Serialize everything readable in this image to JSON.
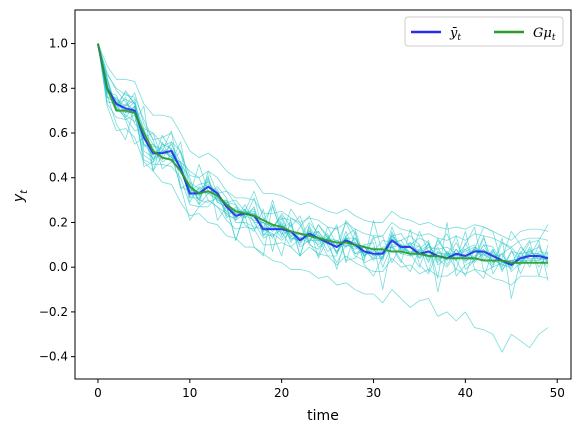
{
  "chart_data": {
    "type": "line",
    "xlabel": "time",
    "ylabel": "y",
    "ylabel_subscript": "t",
    "xlim": [
      -2.5,
      51.5
    ],
    "ylim": [
      -0.5,
      1.15
    ],
    "xticks": [
      0,
      10,
      20,
      30,
      40,
      50
    ],
    "yticks": [
      -0.4,
      -0.2,
      0.0,
      0.2,
      0.4,
      0.6,
      0.8,
      1.0
    ],
    "ytick_labels": [
      "−0.4",
      "−0.2",
      "0.0",
      "0.2",
      "0.4",
      "0.6",
      "0.8",
      "1.0"
    ],
    "grid": false,
    "legend_position": "top-right",
    "colors": {
      "mean": "#2a2aee",
      "model": "#2a9a2a",
      "paths": "#22c4c4"
    },
    "series": [
      {
        "name": "ȳ",
        "name_subscript": "t",
        "color": "#2a2aee",
        "values": [
          1.0,
          0.8,
          0.73,
          0.71,
          0.7,
          0.58,
          0.51,
          0.51,
          0.52,
          0.44,
          0.33,
          0.33,
          0.36,
          0.33,
          0.27,
          0.23,
          0.24,
          0.23,
          0.17,
          0.17,
          0.17,
          0.16,
          0.12,
          0.15,
          0.13,
          0.11,
          0.09,
          0.12,
          0.1,
          0.07,
          0.06,
          0.06,
          0.12,
          0.09,
          0.09,
          0.06,
          0.07,
          0.05,
          0.04,
          0.06,
          0.05,
          0.07,
          0.07,
          0.05,
          0.03,
          0.01,
          0.04,
          0.05,
          0.05,
          0.04
        ]
      },
      {
        "name": "Gμ",
        "name_subscript": "t",
        "color": "#2a9a2a",
        "values": [
          1.0,
          0.8,
          0.7,
          0.7,
          0.69,
          0.6,
          0.52,
          0.49,
          0.48,
          0.43,
          0.36,
          0.33,
          0.34,
          0.32,
          0.28,
          0.25,
          0.24,
          0.23,
          0.21,
          0.19,
          0.18,
          0.16,
          0.15,
          0.14,
          0.13,
          0.12,
          0.11,
          0.11,
          0.1,
          0.09,
          0.08,
          0.08,
          0.07,
          0.07,
          0.06,
          0.06,
          0.05,
          0.05,
          0.04,
          0.04,
          0.04,
          0.04,
          0.03,
          0.03,
          0.03,
          0.02,
          0.02,
          0.02,
          0.02,
          0.02
        ]
      }
    ],
    "sample_paths": {
      "count": 20,
      "color": "#22c4c4",
      "paths": [
        [
          1.0,
          0.79,
          0.73,
          0.66,
          0.55,
          0.58,
          0.6,
          0.48,
          0.56,
          0.52,
          0.31,
          0.31,
          0.41,
          0.21,
          0.27,
          0.12,
          0.24,
          0.24,
          0.21,
          0.27,
          0.16,
          0.09,
          0.13,
          0.11,
          0.19,
          0.14,
          0.06,
          0.13,
          0.13,
          0.07,
          0.07,
          0.12,
          0.11,
          0.12,
          0.14,
          0.1,
          -0.02,
          0.13,
          0.06,
          0.03,
          -0.04,
          0.08,
          0.18,
          0.16,
          0.01,
          0.03,
          0.01,
          0.07,
          0.09,
          0.02
        ],
        [
          1.0,
          0.84,
          0.71,
          0.79,
          0.73,
          0.45,
          0.47,
          0.52,
          0.5,
          0.36,
          0.21,
          0.27,
          0.27,
          0.32,
          0.28,
          0.12,
          0.25,
          0.22,
          0.2,
          0.18,
          0.22,
          0.21,
          0.05,
          0.18,
          0.12,
          0.12,
          0.19,
          0.02,
          0.16,
          0.01,
          -0.04,
          0.05,
          0.09,
          0.02,
          0.17,
          0.01,
          -0.03,
          0.07,
          0.05,
          0.14,
          -0.01,
          0.03,
          0.06,
          0.01,
          0.13,
          -0.14,
          0.03,
          0.05,
          0.12,
          -0.06
        ],
        [
          1.0,
          0.77,
          0.64,
          0.57,
          0.72,
          0.52,
          0.49,
          0.51,
          0.51,
          0.44,
          0.32,
          0.46,
          0.34,
          0.3,
          0.29,
          0.3,
          0.25,
          0.34,
          0.22,
          0.17,
          0.24,
          0.18,
          0.23,
          0.11,
          0.19,
          0.13,
          -0.01,
          0.14,
          0.17,
          0.04,
          0.13,
          0.14,
          0.02,
          0.1,
          0.06,
          0.0,
          0.11,
          -0.05,
          0.2,
          -0.04,
          0.01,
          0.03,
          0.13,
          0.02,
          0.06,
          0.09,
          0.04,
          0.11,
          0.12,
          0.19
        ],
        [
          1.0,
          0.76,
          0.73,
          0.78,
          0.73,
          0.62,
          0.6,
          0.55,
          0.53,
          0.46,
          0.4,
          0.28,
          0.43,
          0.33,
          0.34,
          0.28,
          0.23,
          0.09,
          0.05,
          0.28,
          0.14,
          0.26,
          0.2,
          0.11,
          0.05,
          0.18,
          0.1,
          0.2,
          0.11,
          0.05,
          0.14,
          0.0,
          0.1,
          0.1,
          0.05,
          0.16,
          0.07,
          0.1,
          0.15,
          0.05,
          0.1,
          0.18,
          -0.02,
          0.0,
          0.11,
          0.08,
          -0.03,
          0.06,
          0.06,
          0.03
        ],
        [
          1.0,
          0.82,
          0.71,
          0.68,
          0.65,
          0.72,
          0.43,
          0.5,
          0.55,
          0.47,
          0.43,
          0.4,
          0.3,
          0.27,
          0.24,
          0.21,
          0.28,
          0.2,
          0.13,
          0.15,
          0.05,
          0.22,
          0.19,
          0.1,
          0.08,
          0.13,
          0.09,
          0.13,
          0.05,
          0.03,
          0.21,
          0.06,
          0.1,
          0.03,
          -0.02,
          0.08,
          0.12,
          -0.11,
          0.07,
          0.03,
          0.16,
          -0.01,
          -0.05,
          0.08,
          -0.02,
          0.07,
          0.06,
          0.12,
          -0.04,
          0.1
        ],
        [
          1.0,
          0.87,
          0.79,
          0.74,
          0.69,
          0.5,
          0.47,
          0.59,
          0.52,
          0.35,
          0.38,
          0.35,
          0.33,
          0.34,
          0.22,
          0.27,
          0.22,
          0.31,
          0.16,
          0.3,
          0.17,
          0.2,
          0.05,
          0.19,
          0.04,
          0.13,
          0.18,
          0.03,
          0.04,
          0.1,
          0.11,
          -0.1,
          0.11,
          0.12,
          0.06,
          0.1,
          0.02,
          0.12,
          0.06,
          -0.01,
          0.11,
          0.02,
          0.07,
          0.06,
          0.0,
          0.07,
          0.03,
          0.02,
          0.07,
          0.06
        ],
        [
          1.0,
          0.78,
          0.75,
          0.72,
          0.78,
          0.64,
          0.57,
          0.44,
          0.47,
          0.52,
          0.38,
          0.3,
          0.29,
          0.31,
          0.29,
          0.28,
          0.19,
          0.16,
          0.26,
          0.07,
          0.22,
          0.11,
          0.18,
          0.23,
          0.13,
          0.05,
          0.05,
          0.21,
          0.15,
          0.02,
          0.04,
          0.04,
          0.18,
          0.07,
          0.1,
          0.13,
          0.11,
          0.01,
          0.04,
          0.11,
          0.03,
          0.04,
          0.14,
          -0.03,
          0.04,
          0.16,
          0.1,
          0.03,
          0.03,
          0.07
        ],
        [
          1.0,
          0.74,
          0.73,
          0.75,
          0.73,
          0.54,
          0.55,
          0.52,
          0.61,
          0.36,
          0.34,
          0.37,
          0.38,
          0.33,
          0.23,
          0.22,
          0.26,
          0.17,
          0.2,
          0.18,
          0.23,
          0.13,
          0.12,
          0.14,
          0.16,
          0.1,
          0.02,
          0.1,
          0.08,
          0.1,
          0.05,
          0.06,
          0.14,
          0.15,
          0.09,
          0.05,
          0.06,
          0.04,
          0.0,
          0.06,
          0.05,
          0.04,
          0.1,
          0.09,
          0.02,
          0.03,
          0.04,
          0.04,
          0.04,
          0.04
        ],
        [
          1.0,
          0.83,
          0.71,
          0.67,
          0.61,
          0.62,
          0.43,
          0.56,
          0.47,
          0.56,
          0.34,
          0.28,
          0.33,
          0.3,
          0.3,
          0.2,
          0.2,
          0.18,
          0.17,
          0.15,
          0.12,
          0.16,
          0.13,
          0.2,
          0.15,
          0.07,
          0.1,
          0.1,
          0.09,
          0.09,
          0.08,
          0.03,
          0.16,
          0.06,
          0.05,
          0.06,
          0.09,
          0.08,
          0.09,
          0.06,
          0.08,
          0.1,
          0.04,
          0.0,
          0.02,
          0.01,
          0.09,
          0.05,
          0.04,
          0.0
        ],
        [
          1.0,
          0.79,
          0.75,
          0.69,
          0.72,
          0.58,
          0.48,
          0.52,
          0.49,
          0.45,
          0.35,
          0.32,
          0.36,
          0.31,
          0.25,
          0.26,
          0.24,
          0.25,
          0.15,
          0.14,
          0.17,
          0.13,
          0.12,
          0.16,
          0.11,
          0.14,
          0.09,
          0.13,
          0.09,
          0.06,
          0.06,
          0.06,
          0.14,
          0.1,
          0.09,
          0.04,
          0.07,
          0.04,
          0.05,
          0.05,
          0.07,
          0.09,
          0.06,
          0.03,
          0.01,
          0.0,
          0.06,
          0.07,
          0.04,
          0.03
        ],
        [
          1.0,
          0.85,
          0.7,
          0.76,
          0.64,
          0.61,
          0.55,
          0.49,
          0.48,
          0.47,
          0.29,
          0.36,
          0.33,
          0.36,
          0.31,
          0.21,
          0.24,
          0.26,
          0.14,
          0.19,
          0.13,
          0.19,
          0.09,
          0.12,
          0.12,
          0.15,
          0.06,
          0.16,
          0.06,
          0.07,
          0.04,
          0.09,
          0.09,
          0.06,
          0.11,
          0.09,
          0.04,
          0.07,
          0.03,
          0.08,
          0.03,
          0.05,
          0.08,
          0.04,
          0.06,
          -0.02,
          0.02,
          0.08,
          0.03,
          0.05
        ],
        [
          1.0,
          0.76,
          0.76,
          0.7,
          0.74,
          0.55,
          0.5,
          0.54,
          0.56,
          0.42,
          0.37,
          0.3,
          0.4,
          0.29,
          0.27,
          0.25,
          0.23,
          0.21,
          0.2,
          0.16,
          0.19,
          0.14,
          0.15,
          0.13,
          0.1,
          0.13,
          0.12,
          0.09,
          0.13,
          0.05,
          0.09,
          0.04,
          0.15,
          0.08,
          0.07,
          0.07,
          0.1,
          0.03,
          0.06,
          0.04,
          0.06,
          0.08,
          0.05,
          0.07,
          0.03,
          0.03,
          0.03,
          0.03,
          0.06,
          0.03
        ],
        [
          1.0,
          0.73,
          0.67,
          0.66,
          0.68,
          0.48,
          0.46,
          0.46,
          0.45,
          0.4,
          0.28,
          0.27,
          0.3,
          0.27,
          0.21,
          0.17,
          0.18,
          0.17,
          0.1,
          0.1,
          0.11,
          0.09,
          0.05,
          0.09,
          0.06,
          0.05,
          0.01,
          0.05,
          0.02,
          0.0,
          -0.02,
          -0.02,
          0.04,
          0.0,
          0.01,
          -0.03,
          -0.01,
          -0.04,
          -0.04,
          -0.01,
          -0.03,
          -0.01,
          -0.02,
          -0.05,
          -0.06,
          -0.08,
          -0.04,
          -0.04,
          -0.04,
          -0.05
        ],
        [
          1.0,
          0.86,
          0.8,
          0.77,
          0.76,
          0.66,
          0.57,
          0.58,
          0.6,
          0.51,
          0.41,
          0.4,
          0.43,
          0.4,
          0.34,
          0.31,
          0.31,
          0.3,
          0.24,
          0.24,
          0.25,
          0.22,
          0.2,
          0.22,
          0.21,
          0.18,
          0.17,
          0.2,
          0.17,
          0.15,
          0.14,
          0.14,
          0.2,
          0.17,
          0.16,
          0.14,
          0.15,
          0.13,
          0.12,
          0.14,
          0.12,
          0.15,
          0.14,
          0.13,
          0.11,
          0.09,
          0.12,
          0.13,
          0.13,
          0.12
        ],
        [
          1.0,
          0.72,
          0.61,
          0.62,
          0.58,
          0.47,
          0.43,
          0.38,
          0.37,
          0.29,
          0.23,
          0.24,
          0.2,
          0.19,
          0.14,
          0.13,
          0.09,
          0.09,
          0.06,
          0.03,
          0.02,
          -0.01,
          -0.01,
          -0.02,
          -0.05,
          -0.04,
          -0.08,
          -0.07,
          -0.1,
          -0.12,
          -0.12,
          -0.16,
          -0.1,
          -0.14,
          -0.18,
          -0.15,
          -0.14,
          -0.22,
          -0.2,
          -0.24,
          -0.2,
          -0.27,
          -0.28,
          -0.3,
          -0.38,
          -0.3,
          -0.33,
          -0.36,
          -0.3,
          -0.27
        ],
        [
          1.0,
          0.9,
          0.84,
          0.84,
          0.83,
          0.73,
          0.68,
          0.68,
          0.67,
          0.6,
          0.52,
          0.49,
          0.51,
          0.48,
          0.43,
          0.4,
          0.39,
          0.39,
          0.33,
          0.33,
          0.32,
          0.3,
          0.28,
          0.29,
          0.27,
          0.25,
          0.24,
          0.26,
          0.23,
          0.21,
          0.2,
          0.2,
          0.25,
          0.22,
          0.21,
          0.19,
          0.2,
          0.18,
          0.17,
          0.18,
          0.17,
          0.19,
          0.18,
          0.16,
          0.14,
          0.12,
          0.16,
          0.17,
          0.17,
          0.16
        ],
        [
          1.0,
          0.81,
          0.7,
          0.73,
          0.7,
          0.55,
          0.53,
          0.47,
          0.5,
          0.45,
          0.31,
          0.34,
          0.33,
          0.35,
          0.24,
          0.25,
          0.22,
          0.27,
          0.14,
          0.19,
          0.15,
          0.16,
          0.1,
          0.17,
          0.09,
          0.12,
          0.07,
          0.14,
          0.06,
          0.09,
          0.03,
          0.08,
          0.09,
          0.1,
          0.06,
          0.08,
          0.03,
          0.09,
          0.01,
          0.08,
          0.02,
          0.09,
          0.03,
          0.08,
          -0.01,
          0.03,
          0.01,
          0.09,
          0.0,
          0.06
        ],
        [
          1.0,
          0.78,
          0.77,
          0.67,
          0.72,
          0.61,
          0.48,
          0.55,
          0.53,
          0.43,
          0.36,
          0.3,
          0.39,
          0.29,
          0.3,
          0.22,
          0.26,
          0.2,
          0.2,
          0.13,
          0.2,
          0.12,
          0.15,
          0.12,
          0.16,
          0.1,
          0.12,
          0.09,
          0.13,
          0.05,
          0.08,
          0.04,
          0.14,
          0.08,
          0.11,
          0.04,
          0.11,
          0.02,
          0.07,
          0.03,
          0.08,
          0.03,
          0.1,
          0.02,
          0.06,
          -0.01,
          0.07,
          0.0,
          0.1,
          0.01
        ],
        [
          1.0,
          0.8,
          0.74,
          0.69,
          0.69,
          0.58,
          0.5,
          0.52,
          0.52,
          0.45,
          0.34,
          0.34,
          0.36,
          0.33,
          0.28,
          0.24,
          0.24,
          0.23,
          0.18,
          0.17,
          0.17,
          0.15,
          0.13,
          0.14,
          0.12,
          0.11,
          0.09,
          0.12,
          0.1,
          0.07,
          0.06,
          0.06,
          0.12,
          0.09,
          0.09,
          0.06,
          0.07,
          0.05,
          0.04,
          0.06,
          0.05,
          0.07,
          0.07,
          0.05,
          0.03,
          0.01,
          0.05,
          0.05,
          0.05,
          0.04
        ],
        [
          1.0,
          0.84,
          0.72,
          0.72,
          0.75,
          0.57,
          0.54,
          0.53,
          0.49,
          0.47,
          0.32,
          0.35,
          0.37,
          0.32,
          0.27,
          0.24,
          0.25,
          0.24,
          0.16,
          0.17,
          0.19,
          0.14,
          0.11,
          0.16,
          0.14,
          0.12,
          0.07,
          0.12,
          0.11,
          0.09,
          0.05,
          0.07,
          0.13,
          0.08,
          0.1,
          0.07,
          0.05,
          0.06,
          0.06,
          0.06,
          0.04,
          0.08,
          0.06,
          0.06,
          0.02,
          0.03,
          0.04,
          0.06,
          0.06,
          0.04
        ]
      ]
    }
  }
}
